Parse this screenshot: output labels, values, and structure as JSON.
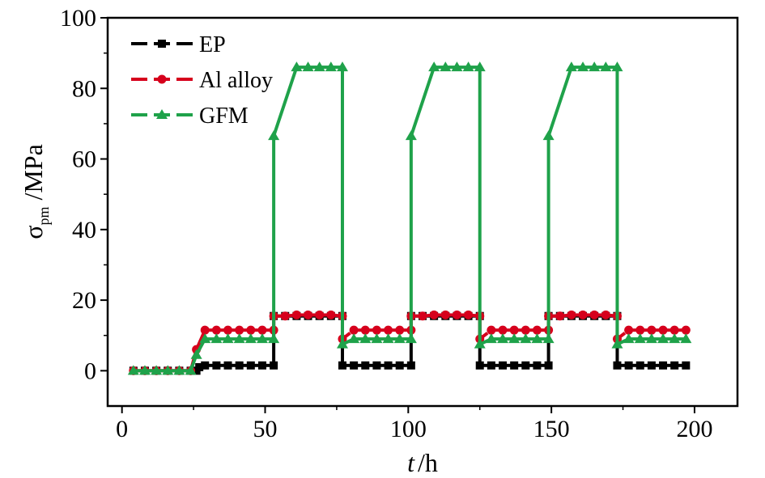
{
  "chart_data": {
    "type": "line",
    "xlabel": {
      "italic": "t",
      "rest": "/h"
    },
    "ylabel": {
      "symbol": "σ",
      "subscript": "pm",
      "unit": "/MPa"
    },
    "xlim": [
      -5,
      215
    ],
    "ylim": [
      -10,
      100
    ],
    "xticks": [
      0,
      50,
      100,
      150,
      200
    ],
    "yticks": [
      0,
      20,
      40,
      60,
      80,
      100
    ],
    "grid": false,
    "legend_position": "top-left",
    "series": [
      {
        "name": "EP",
        "color": "#000000",
        "marker": "square",
        "dash": "dashed",
        "points": [
          [
            4,
            0
          ],
          [
            8,
            0
          ],
          [
            12,
            0
          ],
          [
            16,
            0
          ],
          [
            20,
            0
          ],
          [
            24,
            0
          ],
          [
            26,
            0
          ],
          [
            27,
            1
          ],
          [
            29,
            1.5
          ],
          [
            33,
            1.5
          ],
          [
            37,
            1.5
          ],
          [
            41,
            1.5
          ],
          [
            45,
            1.5
          ],
          [
            49,
            1.5
          ],
          [
            53,
            1.5
          ],
          [
            53,
            15.5
          ],
          [
            57,
            15.5
          ],
          [
            61,
            15.5
          ],
          [
            65,
            15.5
          ],
          [
            69,
            15.5
          ],
          [
            73,
            15.5
          ],
          [
            77,
            15.5
          ],
          [
            77,
            1.5
          ],
          [
            81,
            1.5
          ],
          [
            85,
            1.5
          ],
          [
            89,
            1.5
          ],
          [
            93,
            1.5
          ],
          [
            97,
            1.5
          ],
          [
            101,
            1.5
          ],
          [
            101,
            15.5
          ],
          [
            105,
            15.5
          ],
          [
            109,
            15.5
          ],
          [
            113,
            15.5
          ],
          [
            117,
            15.5
          ],
          [
            121,
            15.5
          ],
          [
            125,
            15.5
          ],
          [
            125,
            1.5
          ],
          [
            129,
            1.5
          ],
          [
            133,
            1.5
          ],
          [
            137,
            1.5
          ],
          [
            141,
            1.5
          ],
          [
            145,
            1.5
          ],
          [
            149,
            1.5
          ],
          [
            149,
            15.5
          ],
          [
            153,
            15.5
          ],
          [
            157,
            15.5
          ],
          [
            161,
            15.5
          ],
          [
            165,
            15.5
          ],
          [
            169,
            15.5
          ],
          [
            173,
            15.5
          ],
          [
            173,
            1.5
          ],
          [
            177,
            1.5
          ],
          [
            181,
            1.5
          ],
          [
            185,
            1.5
          ],
          [
            189,
            1.5
          ],
          [
            193,
            1.5
          ],
          [
            197,
            1.5
          ]
        ]
      },
      {
        "name": "Al alloy",
        "color": "#d6001c",
        "marker": "circle",
        "dash": "dashed",
        "points": [
          [
            4,
            0
          ],
          [
            8,
            0
          ],
          [
            12,
            0
          ],
          [
            16,
            0
          ],
          [
            20,
            0
          ],
          [
            24,
            0
          ],
          [
            26,
            6
          ],
          [
            29,
            11.5
          ],
          [
            33,
            11.5
          ],
          [
            37,
            11.5
          ],
          [
            41,
            11.5
          ],
          [
            45,
            11.5
          ],
          [
            49,
            11.5
          ],
          [
            53,
            11.5
          ],
          [
            53,
            15.5
          ],
          [
            57,
            15.5
          ],
          [
            61,
            15.8
          ],
          [
            65,
            15.8
          ],
          [
            69,
            15.8
          ],
          [
            73,
            15.8
          ],
          [
            77,
            15.5
          ],
          [
            77,
            9
          ],
          [
            81,
            11.5
          ],
          [
            85,
            11.5
          ],
          [
            89,
            11.5
          ],
          [
            93,
            11.5
          ],
          [
            97,
            11.5
          ],
          [
            101,
            11.5
          ],
          [
            101,
            15.5
          ],
          [
            105,
            15.5
          ],
          [
            109,
            15.8
          ],
          [
            113,
            15.8
          ],
          [
            117,
            15.8
          ],
          [
            121,
            15.8
          ],
          [
            125,
            15.5
          ],
          [
            125,
            9
          ],
          [
            129,
            11.5
          ],
          [
            133,
            11.5
          ],
          [
            137,
            11.5
          ],
          [
            141,
            11.5
          ],
          [
            145,
            11.5
          ],
          [
            149,
            11.5
          ],
          [
            149,
            15.5
          ],
          [
            153,
            15.5
          ],
          [
            157,
            15.8
          ],
          [
            161,
            15.8
          ],
          [
            165,
            15.8
          ],
          [
            169,
            15.8
          ],
          [
            173,
            15.5
          ],
          [
            173,
            9
          ],
          [
            177,
            11.5
          ],
          [
            181,
            11.5
          ],
          [
            185,
            11.5
          ],
          [
            189,
            11.5
          ],
          [
            193,
            11.5
          ],
          [
            197,
            11.5
          ]
        ]
      },
      {
        "name": "GFM",
        "color": "#1fa24a",
        "marker": "triangle",
        "dash": "dashed",
        "points": [
          [
            4,
            0
          ],
          [
            8,
            0
          ],
          [
            12,
            0
          ],
          [
            16,
            0
          ],
          [
            20,
            0
          ],
          [
            24,
            0
          ],
          [
            26,
            4.5
          ],
          [
            29,
            9
          ],
          [
            33,
            9
          ],
          [
            37,
            9
          ],
          [
            41,
            9
          ],
          [
            45,
            9
          ],
          [
            49,
            9
          ],
          [
            53,
            9
          ],
          [
            53,
            66.5
          ],
          [
            61,
            86
          ],
          [
            65,
            86
          ],
          [
            69,
            86
          ],
          [
            73,
            86
          ],
          [
            77,
            86
          ],
          [
            77,
            7.5
          ],
          [
            81,
            9
          ],
          [
            85,
            9
          ],
          [
            89,
            9
          ],
          [
            93,
            9
          ],
          [
            97,
            9
          ],
          [
            101,
            9
          ],
          [
            101,
            66.5
          ],
          [
            109,
            86
          ],
          [
            113,
            86
          ],
          [
            117,
            86
          ],
          [
            121,
            86
          ],
          [
            125,
            86
          ],
          [
            125,
            7.5
          ],
          [
            129,
            9
          ],
          [
            133,
            9
          ],
          [
            137,
            9
          ],
          [
            141,
            9
          ],
          [
            145,
            9
          ],
          [
            149,
            9
          ],
          [
            149,
            66.5
          ],
          [
            157,
            86
          ],
          [
            161,
            86
          ],
          [
            165,
            86
          ],
          [
            169,
            86
          ],
          [
            173,
            86
          ],
          [
            173,
            7.5
          ],
          [
            177,
            9
          ],
          [
            181,
            9
          ],
          [
            185,
            9
          ],
          [
            189,
            9
          ],
          [
            193,
            9
          ],
          [
            197,
            9
          ]
        ]
      }
    ]
  }
}
